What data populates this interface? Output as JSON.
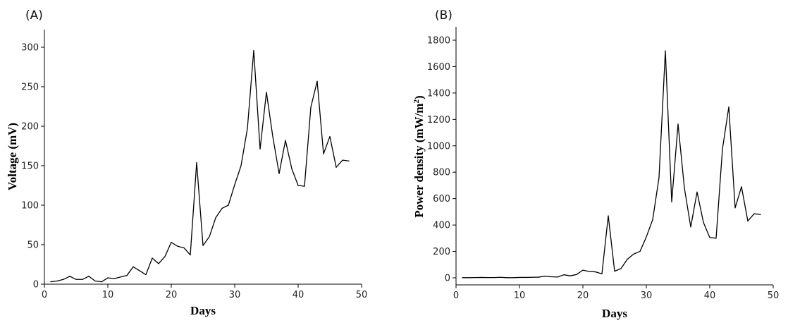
{
  "chart_data": [
    {
      "type": "line",
      "panel_label": "(A)",
      "xlabel": "Days",
      "ylabel": "Voltage (mV)",
      "xlim": [
        0,
        50
      ],
      "ylim": [
        0,
        320
      ],
      "xticks": [
        0,
        10,
        20,
        30,
        40,
        50
      ],
      "yticks": [
        0,
        50,
        100,
        150,
        200,
        250,
        300
      ],
      "grid": false,
      "x": [
        1,
        2,
        3,
        4,
        5,
        6,
        7,
        8,
        9,
        10,
        11,
        12,
        13,
        14,
        15,
        16,
        17,
        18,
        19,
        20,
        21,
        22,
        23,
        24,
        25,
        26,
        27,
        28,
        29,
        30,
        31,
        32,
        33,
        34,
        35,
        36,
        37,
        38,
        39,
        40,
        41,
        42,
        43,
        44,
        45,
        46,
        47,
        48
      ],
      "values": [
        3,
        4,
        6,
        10,
        6,
        6,
        10,
        4,
        3,
        8,
        7,
        9,
        11,
        22,
        17,
        12,
        33,
        26,
        35,
        53,
        48,
        46,
        37,
        154,
        49,
        60,
        84,
        96,
        100,
        126,
        150,
        197,
        296,
        171,
        243,
        187,
        140,
        182,
        146,
        125,
        124,
        224,
        257,
        165,
        187,
        148,
        157,
        156
      ]
    },
    {
      "type": "line",
      "panel_label": "(B)",
      "xlabel": "Days",
      "ylabel_main": "Power density (mW/m",
      "ylabel_sup": "2",
      "ylabel_end": ")",
      "xlim": [
        0,
        50
      ],
      "ylim": [
        -50,
        1900
      ],
      "xticks": [
        0,
        10,
        20,
        30,
        40,
        50
      ],
      "yticks": [
        0,
        200,
        400,
        600,
        800,
        1000,
        1200,
        1400,
        1600,
        1800
      ],
      "grid": false,
      "x": [
        1,
        2,
        3,
        4,
        5,
        6,
        7,
        8,
        9,
        10,
        11,
        12,
        13,
        14,
        15,
        16,
        17,
        18,
        19,
        20,
        21,
        22,
        23,
        24,
        25,
        26,
        27,
        28,
        29,
        30,
        31,
        32,
        33,
        34,
        35,
        36,
        37,
        38,
        39,
        40,
        41,
        42,
        43,
        44,
        45,
        46,
        47,
        48
      ],
      "values": [
        1,
        1,
        2,
        3,
        2,
        2,
        4,
        1,
        1,
        3,
        3,
        4,
        5,
        12,
        8,
        6,
        23,
        15,
        25,
        58,
        48,
        45,
        30,
        470,
        50,
        70,
        140,
        180,
        200,
        310,
        440,
        760,
        1720,
        575,
        1165,
        680,
        385,
        650,
        420,
        305,
        300,
        975,
        1295,
        530,
        690,
        430,
        485,
        480
      ]
    }
  ]
}
